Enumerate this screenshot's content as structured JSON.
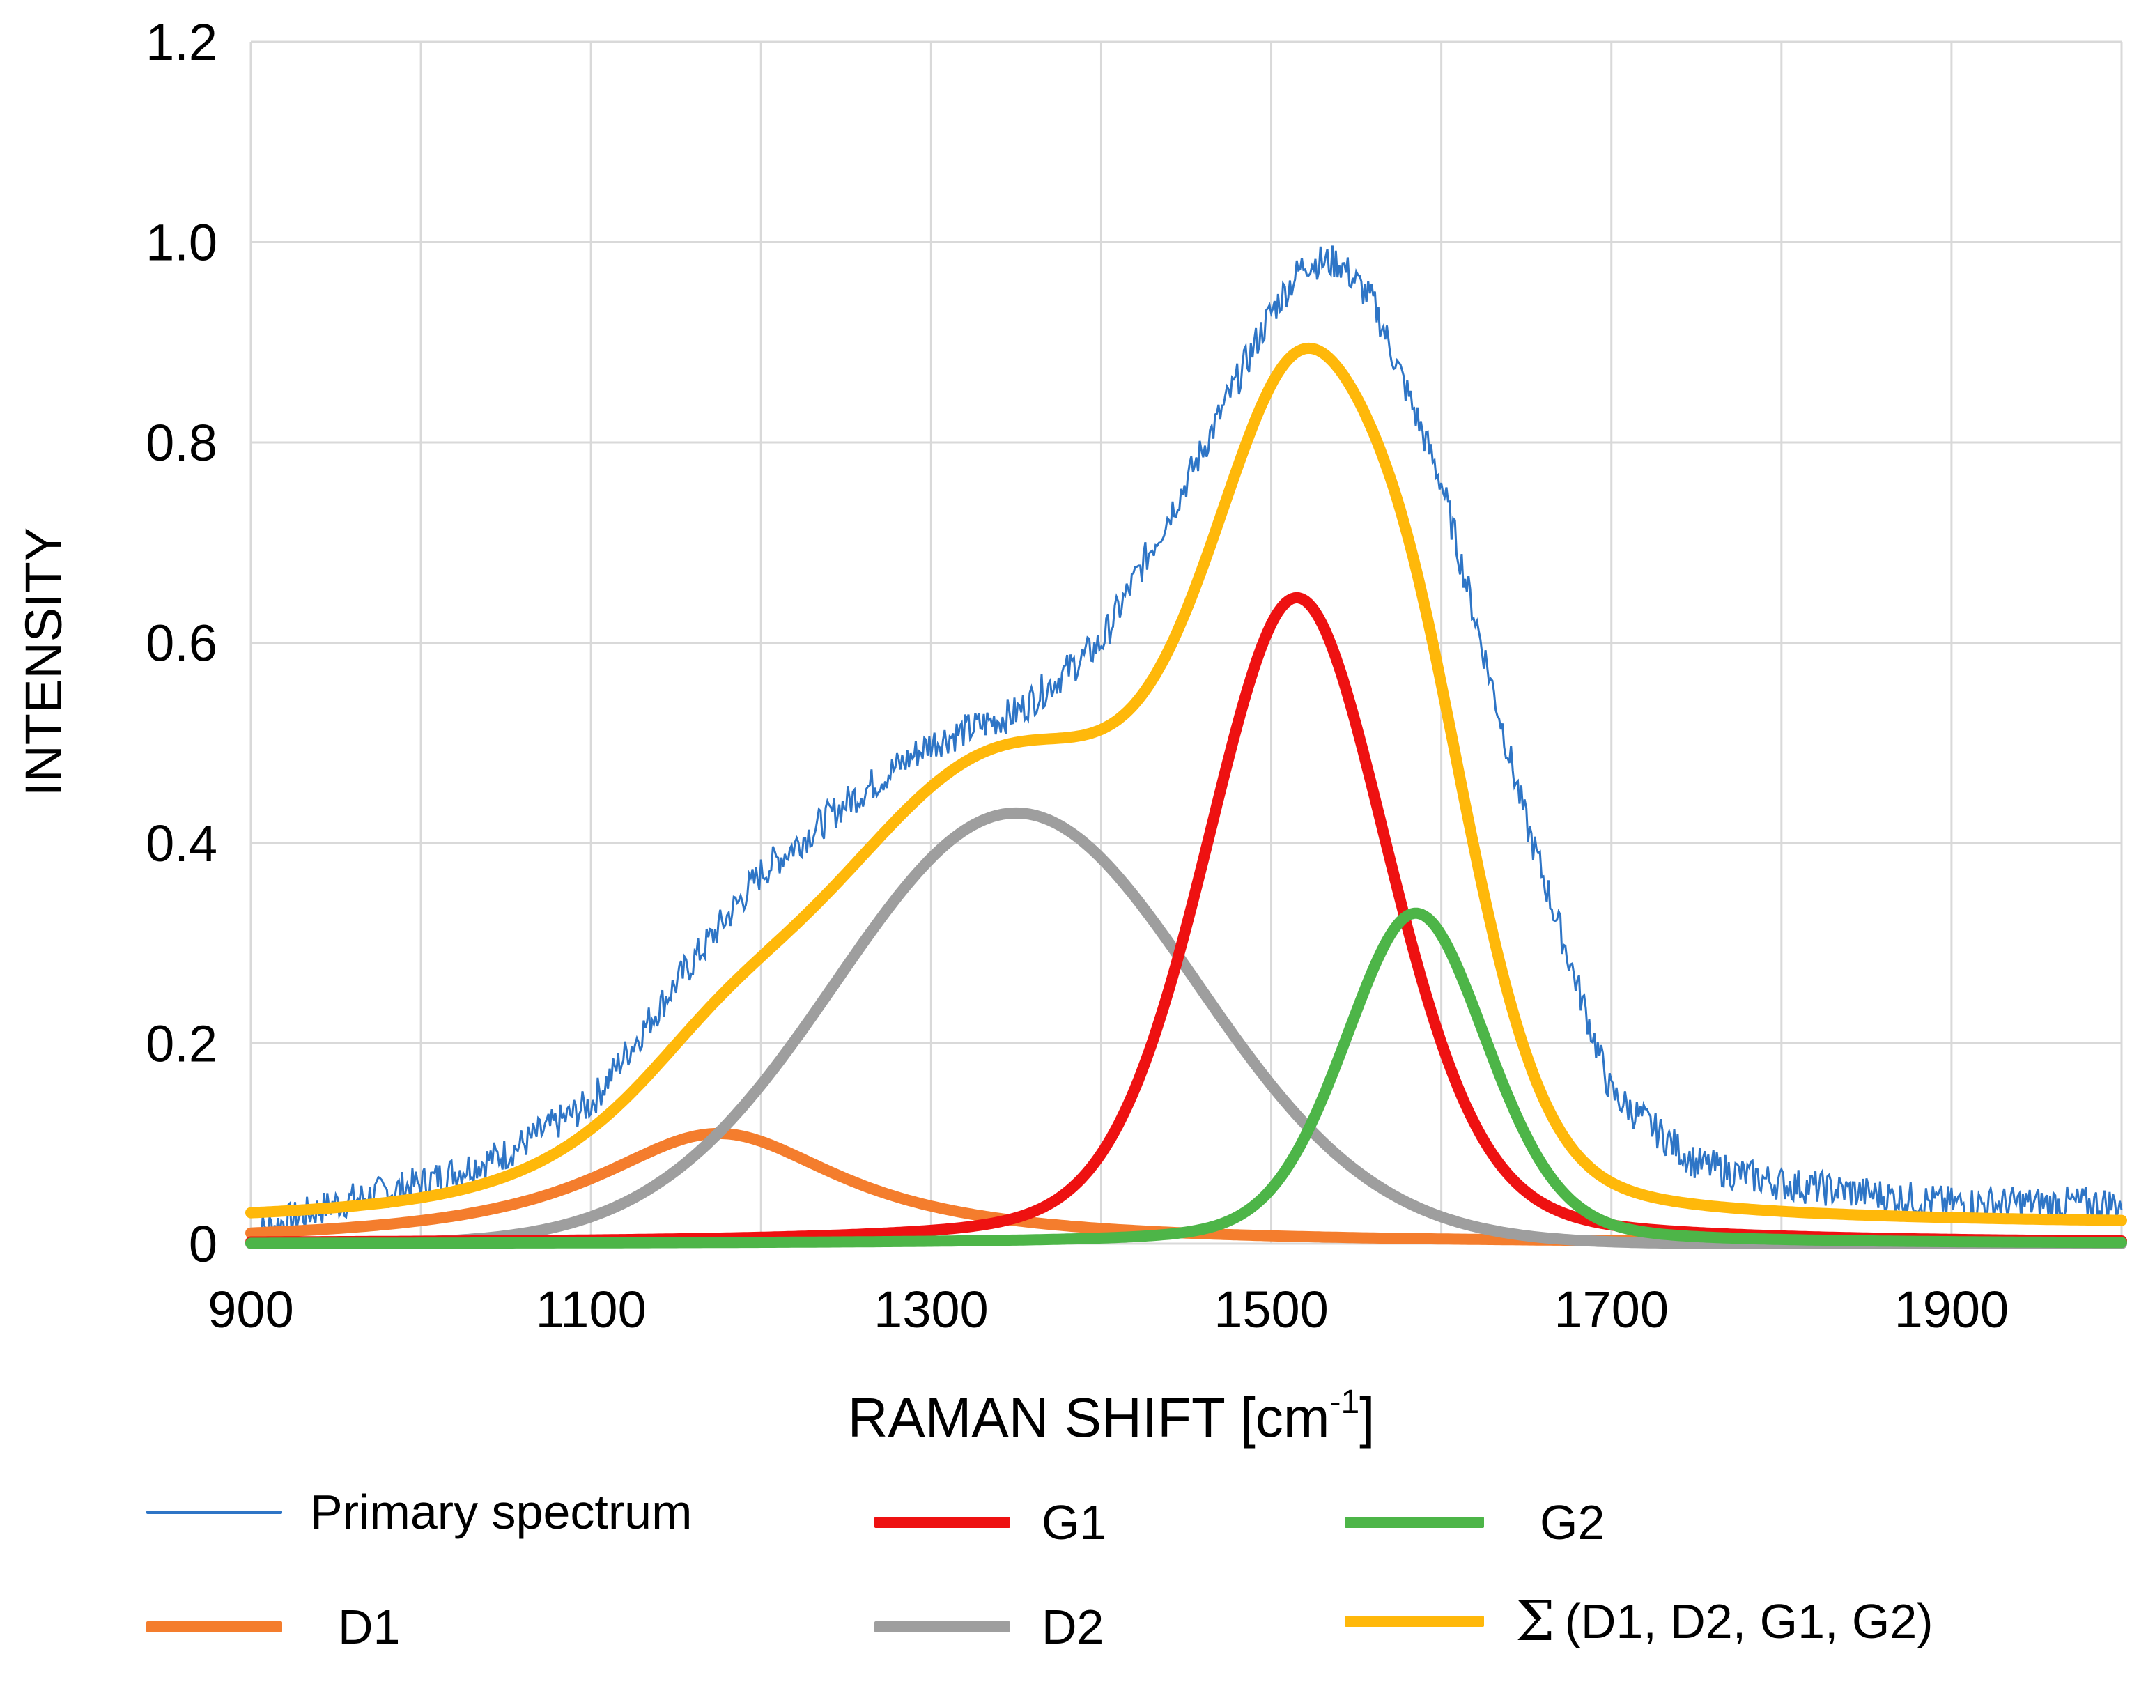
{
  "chart_data": {
    "type": "line",
    "title": "",
    "xlabel": "RAMAN SHIFT [cm",
    "xlabel_sup": "-1",
    "xlabel_close": "]",
    "ylabel": "INTENSITY",
    "xlim": [
      900,
      2000
    ],
    "ylim": [
      0,
      1.2
    ],
    "xticks": [
      900,
      1100,
      1300,
      1500,
      1700,
      1900
    ],
    "yticks": [
      0,
      0.2,
      0.4,
      0.6,
      0.8,
      1.0,
      1.2
    ],
    "ytick_labels": [
      "0",
      "0.2",
      "0.4",
      "0.6",
      "0.8",
      "1.0",
      "1.2"
    ],
    "grid": true,
    "legend_position": "bottom",
    "series": [
      {
        "name": "Primary spectrum",
        "color": "#2E75C6",
        "style": "noisy",
        "x": [
          900,
          950,
          1000,
          1050,
          1100,
          1150,
          1200,
          1250,
          1300,
          1350,
          1400,
          1450,
          1500,
          1520,
          1540,
          1560,
          1600,
          1650,
          1700,
          1750,
          1800,
          1850,
          1900,
          1950,
          2000
        ],
        "values": [
          0.01,
          0.04,
          0.06,
          0.09,
          0.14,
          0.26,
          0.37,
          0.44,
          0.5,
          0.53,
          0.6,
          0.76,
          0.93,
          0.98,
          0.98,
          0.94,
          0.76,
          0.42,
          0.15,
          0.08,
          0.06,
          0.05,
          0.04,
          0.04,
          0.04
        ]
      },
      {
        "name": "D1",
        "color": "#F47D2D",
        "center": 1175,
        "height": 0.11,
        "hwhm": 90,
        "shape": "lorentzian"
      },
      {
        "name": "D2",
        "color": "#9E9E9E",
        "center": 1350,
        "height": 0.43,
        "hwhm": 125,
        "shape": "gaussian"
      },
      {
        "name": "G1",
        "color": "#EE1111",
        "center": 1515,
        "height": 0.645,
        "hwhm": 64,
        "shape": "pseudo-voigt"
      },
      {
        "name": "G2",
        "color": "#4DB548",
        "center": 1585,
        "height": 0.33,
        "hwhm": 50,
        "shape": "pseudo-voigt"
      },
      {
        "name": "Σ (D1, D2, G1, G2)",
        "color": "#FFB80A",
        "style": "sum"
      }
    ]
  },
  "legend": {
    "primary": "Primary spectrum",
    "g1": "G1",
    "g2": "G2",
    "d1": "D1",
    "d2": "D2",
    "sigma_symbol": "Σ",
    "sum": "(D1, D2, G1, G2)"
  }
}
